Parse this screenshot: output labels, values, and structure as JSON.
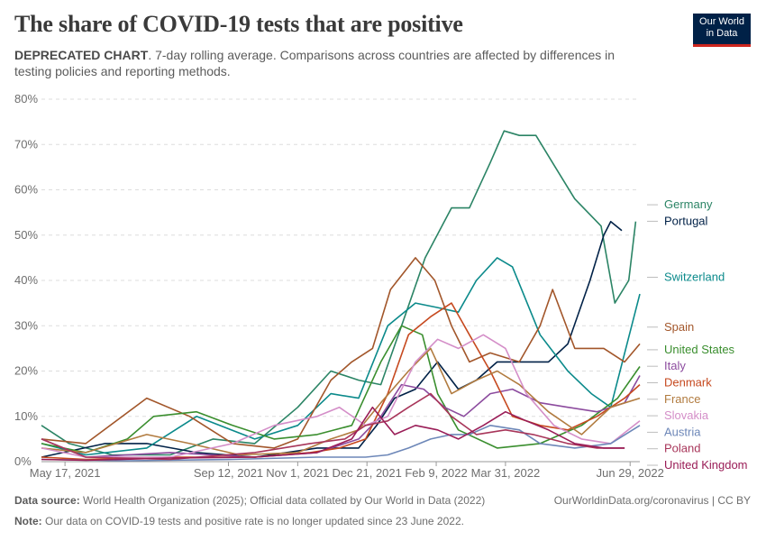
{
  "header": {
    "title": "The share of COVID-19 tests that are positive",
    "subtitle_lead": "DEPRECATED CHART",
    "subtitle_rest": ". 7-day rolling average. Comparisons across countries are affected by differences in testing policies and reporting methods."
  },
  "logo": {
    "line1": "Our World",
    "line2": "in Data",
    "bg_color": "#002147",
    "accent_color": "#ce261e"
  },
  "footer": {
    "source_label": "Data source:",
    "source_text": " World Health Organization (2025); Official data collated by Our World in Data (2022)",
    "right_text": "OurWorldinData.org/coronavirus | CC BY",
    "note_label": "Note:",
    "note_text": " Our data on COVID-19 tests and positive rate is no longer updated since 23 June 2022."
  },
  "chart_data": {
    "type": "line",
    "y_unit": "%",
    "ylim": [
      0,
      80
    ],
    "y_ticks": [
      "0%",
      "10%",
      "20%",
      "30%",
      "40%",
      "50%",
      "60%",
      "70%",
      "80%"
    ],
    "x_range": [
      "2021-04-30",
      "2022-07-06"
    ],
    "x_ticks": [
      {
        "date": "2021-05-17",
        "label": "May 17, 2021"
      },
      {
        "date": "2021-09-12",
        "label": "Sep 12, 2021"
      },
      {
        "date": "2021-11-01",
        "label": "Nov 1, 2021"
      },
      {
        "date": "2021-12-21",
        "label": "Dec 21, 2021"
      },
      {
        "date": "2022-02-09",
        "label": "Feb 9, 2022"
      },
      {
        "date": "2022-03-31",
        "label": "Mar 31, 2022"
      },
      {
        "date": "2022-06-29",
        "label": "Jun 29, 2022"
      }
    ],
    "grid": "horizontal-dashed",
    "legend": "right, labels at line ends",
    "series": [
      {
        "name": "Germany",
        "color": "#2b8465",
        "points": [
          [
            "2021-04-30",
            8
          ],
          [
            "2021-05-20",
            4
          ],
          [
            "2021-06-20",
            1.5
          ],
          [
            "2021-08-01",
            1.5
          ],
          [
            "2021-09-01",
            5
          ],
          [
            "2021-10-01",
            4
          ],
          [
            "2021-11-01",
            12
          ],
          [
            "2021-11-25",
            20
          ],
          [
            "2021-12-15",
            18
          ],
          [
            "2021-12-31",
            17
          ],
          [
            "2022-01-15",
            30
          ],
          [
            "2022-02-01",
            45
          ],
          [
            "2022-02-20",
            56
          ],
          [
            "2022-03-05",
            56
          ],
          [
            "2022-03-20",
            66
          ],
          [
            "2022-03-30",
            73
          ],
          [
            "2022-04-10",
            72
          ],
          [
            "2022-04-22",
            72
          ],
          [
            "2022-05-06",
            65
          ],
          [
            "2022-05-20",
            58
          ],
          [
            "2022-06-08",
            52
          ],
          [
            "2022-06-18",
            35
          ],
          [
            "2022-06-28",
            40
          ],
          [
            "2022-07-03",
            53
          ]
        ]
      },
      {
        "name": "Portugal",
        "color": "#002147",
        "points": [
          [
            "2021-04-30",
            1
          ],
          [
            "2021-06-15",
            4
          ],
          [
            "2021-07-15",
            4
          ],
          [
            "2021-08-20",
            2
          ],
          [
            "2021-10-01",
            1
          ],
          [
            "2021-11-15",
            3
          ],
          [
            "2021-12-15",
            3
          ],
          [
            "2021-12-28",
            8
          ],
          [
            "2022-01-10",
            14
          ],
          [
            "2022-01-25",
            16
          ],
          [
            "2022-02-10",
            22
          ],
          [
            "2022-02-25",
            16
          ],
          [
            "2022-03-10",
            18
          ],
          [
            "2022-03-25",
            22
          ],
          [
            "2022-04-15",
            22
          ],
          [
            "2022-05-01",
            22
          ],
          [
            "2022-05-15",
            26
          ],
          [
            "2022-05-31",
            40
          ],
          [
            "2022-06-10",
            50
          ],
          [
            "2022-06-15",
            53
          ],
          [
            "2022-06-23",
            51
          ]
        ]
      },
      {
        "name": "Switzerland",
        "color": "#0b8a8b",
        "points": [
          [
            "2021-04-30",
            4
          ],
          [
            "2021-06-01",
            1.5
          ],
          [
            "2021-07-15",
            3
          ],
          [
            "2021-08-20",
            10
          ],
          [
            "2021-10-01",
            5
          ],
          [
            "2021-11-01",
            8
          ],
          [
            "2021-11-25",
            15
          ],
          [
            "2021-12-15",
            14
          ],
          [
            "2022-01-05",
            30
          ],
          [
            "2022-01-25",
            35
          ],
          [
            "2022-02-10",
            34
          ],
          [
            "2022-02-25",
            33
          ],
          [
            "2022-03-10",
            40
          ],
          [
            "2022-03-25",
            45
          ],
          [
            "2022-04-05",
            43
          ],
          [
            "2022-04-25",
            28
          ],
          [
            "2022-05-15",
            20
          ],
          [
            "2022-06-01",
            15
          ],
          [
            "2022-06-15",
            12
          ],
          [
            "2022-07-06",
            37
          ]
        ]
      },
      {
        "name": "Spain",
        "color": "#a2562a",
        "points": [
          [
            "2021-04-30",
            5
          ],
          [
            "2021-06-01",
            4
          ],
          [
            "2021-07-15",
            14
          ],
          [
            "2021-08-15",
            10
          ],
          [
            "2021-09-15",
            4
          ],
          [
            "2021-10-15",
            3
          ],
          [
            "2021-11-01",
            5
          ],
          [
            "2021-11-25",
            18
          ],
          [
            "2021-12-10",
            22
          ],
          [
            "2021-12-25",
            25
          ],
          [
            "2022-01-07",
            38
          ],
          [
            "2022-01-25",
            45
          ],
          [
            "2022-02-08",
            40
          ],
          [
            "2022-02-20",
            30
          ],
          [
            "2022-03-05",
            22
          ],
          [
            "2022-03-20",
            24
          ],
          [
            "2022-04-10",
            22
          ],
          [
            "2022-04-25",
            30
          ],
          [
            "2022-05-04",
            38
          ],
          [
            "2022-05-20",
            25
          ],
          [
            "2022-06-10",
            25
          ],
          [
            "2022-06-25",
            22
          ],
          [
            "2022-07-06",
            26
          ]
        ]
      },
      {
        "name": "United States",
        "color": "#3a8e2e",
        "points": [
          [
            "2021-04-30",
            4
          ],
          [
            "2021-06-01",
            2
          ],
          [
            "2021-07-01",
            5
          ],
          [
            "2021-07-20",
            10
          ],
          [
            "2021-08-20",
            11
          ],
          [
            "2021-09-15",
            8
          ],
          [
            "2021-10-15",
            5
          ],
          [
            "2021-11-15",
            6
          ],
          [
            "2021-12-10",
            8
          ],
          [
            "2021-12-31",
            22
          ],
          [
            "2022-01-15",
            30
          ],
          [
            "2022-01-30",
            28
          ],
          [
            "2022-02-10",
            15
          ],
          [
            "2022-02-25",
            7
          ],
          [
            "2022-03-25",
            3
          ],
          [
            "2022-04-25",
            4
          ],
          [
            "2022-05-25",
            8
          ],
          [
            "2022-06-20",
            14
          ],
          [
            "2022-07-06",
            21
          ]
        ]
      },
      {
        "name": "Italy",
        "color": "#8c4b9e",
        "points": [
          [
            "2021-04-30",
            5
          ],
          [
            "2021-06-01",
            1
          ],
          [
            "2021-08-01",
            2
          ],
          [
            "2021-10-01",
            1
          ],
          [
            "2021-11-15",
            2
          ],
          [
            "2021-12-15",
            5
          ],
          [
            "2021-12-31",
            10
          ],
          [
            "2022-01-15",
            17
          ],
          [
            "2022-01-31",
            16
          ],
          [
            "2022-02-15",
            12
          ],
          [
            "2022-03-01",
            10
          ],
          [
            "2022-03-20",
            15
          ],
          [
            "2022-04-05",
            16
          ],
          [
            "2022-04-25",
            13
          ],
          [
            "2022-05-15",
            12
          ],
          [
            "2022-06-05",
            11
          ],
          [
            "2022-06-25",
            13
          ],
          [
            "2022-07-06",
            19
          ]
        ]
      },
      {
        "name": "Denmark",
        "color": "#c6491f",
        "points": [
          [
            "2021-04-30",
            1
          ],
          [
            "2021-06-01",
            0.5
          ],
          [
            "2021-08-01",
            1
          ],
          [
            "2021-10-01",
            1
          ],
          [
            "2021-11-10",
            2
          ],
          [
            "2021-12-01",
            3
          ],
          [
            "2021-12-20",
            5
          ],
          [
            "2022-01-05",
            15
          ],
          [
            "2022-01-20",
            28
          ],
          [
            "2022-02-05",
            32
          ],
          [
            "2022-02-20",
            35
          ],
          [
            "2022-03-05",
            28
          ],
          [
            "2022-03-20",
            20
          ],
          [
            "2022-04-05",
            10
          ],
          [
            "2022-04-25",
            8
          ],
          [
            "2022-05-15",
            7
          ],
          [
            "2022-06-05",
            10
          ],
          [
            "2022-06-25",
            14
          ],
          [
            "2022-07-06",
            17
          ]
        ]
      },
      {
        "name": "France",
        "color": "#b17b3f",
        "points": [
          [
            "2021-04-30",
            3
          ],
          [
            "2021-06-01",
            2
          ],
          [
            "2021-07-15",
            6
          ],
          [
            "2021-08-15",
            4
          ],
          [
            "2021-09-20",
            1.5
          ],
          [
            "2021-11-01",
            2
          ],
          [
            "2021-11-25",
            5
          ],
          [
            "2021-12-15",
            7
          ],
          [
            "2021-12-31",
            13
          ],
          [
            "2022-01-20",
            20
          ],
          [
            "2022-02-05",
            25
          ],
          [
            "2022-02-20",
            15
          ],
          [
            "2022-03-10",
            18
          ],
          [
            "2022-03-25",
            20
          ],
          [
            "2022-04-10",
            17
          ],
          [
            "2022-05-01",
            11
          ],
          [
            "2022-05-25",
            6
          ],
          [
            "2022-06-15",
            12
          ],
          [
            "2022-07-06",
            14
          ]
        ]
      },
      {
        "name": "Slovakia",
        "color": "#d48ec8",
        "points": [
          [
            "2021-04-30",
            3
          ],
          [
            "2021-06-01",
            1
          ],
          [
            "2021-08-01",
            1
          ],
          [
            "2021-09-15",
            4
          ],
          [
            "2021-10-15",
            8
          ],
          [
            "2021-11-15",
            10
          ],
          [
            "2021-12-01",
            12
          ],
          [
            "2021-12-20",
            8
          ],
          [
            "2022-01-05",
            10
          ],
          [
            "2022-01-25",
            22
          ],
          [
            "2022-02-10",
            27
          ],
          [
            "2022-02-25",
            25
          ],
          [
            "2022-03-15",
            28
          ],
          [
            "2022-03-31",
            25
          ],
          [
            "2022-04-15",
            15
          ],
          [
            "2022-05-05",
            8
          ],
          [
            "2022-05-25",
            5
          ],
          [
            "2022-06-15",
            4
          ],
          [
            "2022-07-06",
            9
          ]
        ]
      },
      {
        "name": "Austria",
        "color": "#6d87b8",
        "points": [
          [
            "2021-04-30",
            0.5
          ],
          [
            "2021-07-01",
            0.2
          ],
          [
            "2021-09-15",
            0.5
          ],
          [
            "2021-11-15",
            1
          ],
          [
            "2021-12-20",
            1
          ],
          [
            "2022-01-05",
            1.5
          ],
          [
            "2022-01-20",
            3
          ],
          [
            "2022-02-05",
            5
          ],
          [
            "2022-02-20",
            6
          ],
          [
            "2022-03-05",
            6
          ],
          [
            "2022-03-20",
            8
          ],
          [
            "2022-04-10",
            7
          ],
          [
            "2022-04-25",
            4
          ],
          [
            "2022-05-20",
            3
          ],
          [
            "2022-06-15",
            4
          ],
          [
            "2022-07-06",
            8
          ]
        ]
      },
      {
        "name": "Poland",
        "color": "#a8365a",
        "points": [
          [
            "2021-04-30",
            5
          ],
          [
            "2021-06-01",
            1
          ],
          [
            "2021-08-01",
            0.5
          ],
          [
            "2021-10-01",
            2
          ],
          [
            "2021-11-10",
            4
          ],
          [
            "2021-12-05",
            5
          ],
          [
            "2021-12-20",
            8
          ],
          [
            "2022-01-05",
            9
          ],
          [
            "2022-01-20",
            12
          ],
          [
            "2022-02-05",
            15
          ],
          [
            "2022-02-20",
            10
          ],
          [
            "2022-03-10",
            6
          ],
          [
            "2022-03-31",
            7
          ],
          [
            "2022-04-20",
            6
          ],
          [
            "2022-05-15",
            4
          ],
          [
            "2022-06-05",
            3
          ],
          [
            "2022-06-25",
            3
          ]
        ]
      },
      {
        "name": "United Kingdom",
        "color": "#9a1d57",
        "points": [
          [
            "2021-04-30",
            0.5
          ],
          [
            "2021-06-01",
            0.3
          ],
          [
            "2021-08-01",
            0.8
          ],
          [
            "2021-10-01",
            1
          ],
          [
            "2021-11-15",
            2
          ],
          [
            "2021-12-10",
            5
          ],
          [
            "2021-12-25",
            12
          ],
          [
            "2022-01-10",
            6
          ],
          [
            "2022-01-25",
            8
          ],
          [
            "2022-02-10",
            7
          ],
          [
            "2022-02-25",
            5
          ],
          [
            "2022-03-15",
            8
          ],
          [
            "2022-03-31",
            11
          ],
          [
            "2022-04-15",
            9
          ],
          [
            "2022-05-01",
            7
          ],
          [
            "2022-05-20",
            4
          ],
          [
            "2022-06-10",
            3
          ],
          [
            "2022-06-25",
            3
          ]
        ]
      }
    ]
  }
}
